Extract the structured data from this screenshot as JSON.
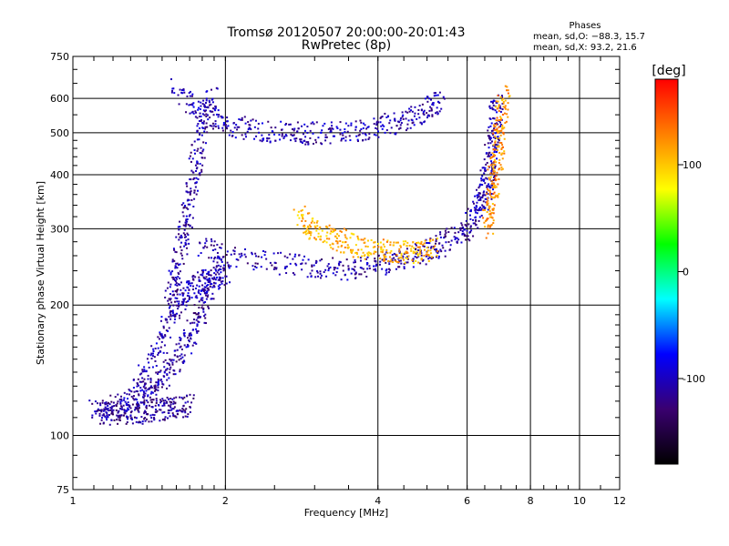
{
  "chart_data": {
    "type": "scatter",
    "title": "Tromsø 20120507 20:00:00-20:01:43",
    "subtitle": "RwPretec (8p)",
    "phases_box": {
      "heading": "Phases",
      "line_o": "mean, sd,O: −88.3, 15.7",
      "line_x": "mean, sd,X:  93.2, 21.6"
    },
    "xlabel": "Frequency [MHz]",
    "ylabel": "Stationary phase Virtual Height [km]",
    "x_scale": "log",
    "y_scale": "log",
    "xlim": [
      1,
      12
    ],
    "ylim": [
      75,
      750
    ],
    "x_ticks": [
      1,
      2,
      4,
      6,
      8,
      10,
      12
    ],
    "x_tick_labels": [
      "1",
      "2",
      "4",
      "6",
      "8",
      "10",
      "12"
    ],
    "y_ticks": [
      75,
      100,
      200,
      300,
      400,
      500,
      600,
      750
    ],
    "y_tick_labels": [
      "75",
      "100",
      "200",
      "300",
      "400",
      "500",
      "600",
      "750"
    ],
    "grid": true,
    "colorbar": {
      "label": "[deg]",
      "range": [
        -180,
        180
      ],
      "ticks": [
        100,
        0,
        -100
      ],
      "tick_labels": [
        "100",
        "0",
        "-100"
      ],
      "colormap": [
        "#000000",
        "#3a0070",
        "#0000ff",
        "#00ffff",
        "#00ff00",
        "#ffff00",
        "#ff8000",
        "#ff0000"
      ]
    },
    "series": [
      {
        "segments": [
          {
            "f": [
              1.1,
              1.25,
              1.4,
              1.5,
              1.6,
              1.7,
              1.8,
              1.9
            ],
            "h": [
              115,
              118,
              125,
              135,
              150,
              170,
              195,
              230
            ],
            "phase": -110
          },
          {
            "f": [
              1.12,
              1.2,
              1.3,
              1.4,
              1.5,
              1.6,
              1.7
            ],
            "h": [
              113,
              112,
              112,
              114,
              115,
              116,
              118
            ],
            "phase": -115
          },
          {
            "f": [
              1.3,
              1.4,
              1.5,
              1.6,
              1.7,
              1.8,
              1.9,
              2.0
            ],
            "h": [
              120,
              140,
              170,
              200,
              215,
              225,
              230,
              235
            ],
            "phase": -105
          },
          {
            "f": [
              1.55,
              1.6,
              1.65,
              1.7,
              1.75,
              1.8,
              1.9
            ],
            "h": [
              200,
              240,
              290,
              350,
              420,
              520,
              620
            ],
            "phase": -110
          },
          {
            "f": [
              1.6,
              1.8,
              2.0,
              2.3,
              2.7,
              3.0,
              3.5,
              4.0,
              4.5,
              5.0,
              5.3
            ],
            "h": [
              630,
              560,
              520,
              505,
              500,
              498,
              505,
              515,
              530,
              560,
              600
            ],
            "phase": -105
          },
          {
            "f": [
              1.8,
              2.0,
              2.5,
              3.0,
              3.5,
              4.0,
              4.5,
              5.0,
              5.5,
              6.0,
              6.3
            ],
            "h": [
              275,
              260,
              250,
              245,
              242,
              248,
              255,
              265,
              280,
              300,
              330
            ],
            "phase": -110
          },
          {
            "f": [
              6.3,
              6.5,
              6.6,
              6.7,
              6.8,
              6.9
            ],
            "h": [
              330,
              360,
              400,
              450,
              520,
              600
            ],
            "phase": -105
          },
          {
            "f": [
              2.8,
              3.0,
              3.3,
              3.6,
              4.0,
              4.4,
              4.8,
              5.2
            ],
            "h": [
              320,
              300,
              285,
              275,
              268,
              265,
              265,
              270
            ],
            "phase": 110
          },
          {
            "f": [
              6.6,
              6.7,
              6.8,
              6.9,
              7.0,
              7.1
            ],
            "h": [
              300,
              340,
              400,
              460,
              540,
              620
            ],
            "phase": 120
          }
        ]
      }
    ]
  }
}
